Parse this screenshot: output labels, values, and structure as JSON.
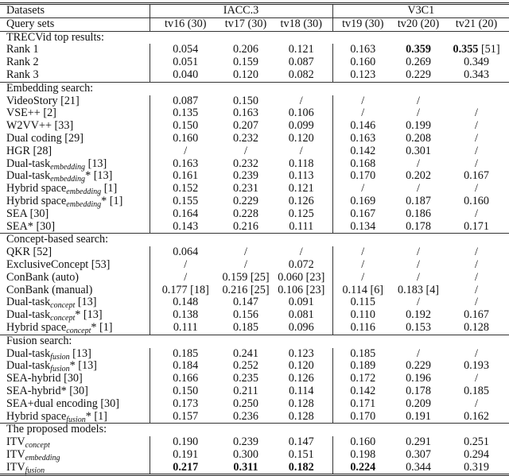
{
  "header": {
    "datasets_label": "Datasets",
    "iacc": "IACC.3",
    "v3c1": "V3C1",
    "querysets_label": "Query sets",
    "query_sets": [
      "tv16 (30)",
      "tv17 (30)",
      "tv18 (30)",
      "tv19 (30)",
      "tv20 (20)",
      "tv21 (20)"
    ]
  },
  "sections": [
    {
      "title": "TRECVid top results:",
      "rows": [
        {
          "name": "Rank 1",
          "cells": [
            "0.054",
            "0.206",
            "0.121",
            "0.163",
            "0.359",
            "0.355 [51]"
          ],
          "bold": [
            4,
            5
          ]
        },
        {
          "name": "Rank 2",
          "cells": [
            "0.051",
            "0.159",
            "0.087",
            "0.160",
            "0.269",
            "0.349"
          ]
        },
        {
          "name": "Rank 3",
          "cells": [
            "0.040",
            "0.120",
            "0.082",
            "0.123",
            "0.229",
            "0.343"
          ]
        }
      ]
    },
    {
      "title": "Embedding search:",
      "rows": [
        {
          "name": "VideoStory [21]",
          "cells": [
            "0.087",
            "0.150",
            "/",
            "/",
            "/",
            ""
          ]
        },
        {
          "name": "VSE++ [2]",
          "cells": [
            "0.135",
            "0.163",
            "0.106",
            "/",
            "/",
            "/"
          ]
        },
        {
          "name": "W2VV++ [33]",
          "cells": [
            "0.150",
            "0.207",
            "0.099",
            "0.146",
            "0.199",
            "/"
          ]
        },
        {
          "name": "Dual coding [29]",
          "cells": [
            "0.160",
            "0.232",
            "0.120",
            "0.163",
            "0.208",
            "/"
          ]
        },
        {
          "name": "HGR [28]",
          "cells": [
            "/",
            "/",
            "/",
            "0.142",
            "0.301",
            "/"
          ]
        },
        {
          "name": "Dual-task",
          "sub": "embedding",
          "suffix": " [13]",
          "cells": [
            "0.163",
            "0.232",
            "0.118",
            "0.168",
            "/",
            "/"
          ]
        },
        {
          "name": "Dual-task",
          "sub": "embedding",
          "suffix": "* [13]",
          "cells": [
            "0.161",
            "0.239",
            "0.113",
            "0.170",
            "0.202",
            "0.167"
          ]
        },
        {
          "name": "Hybrid space",
          "sub": "embedding",
          "suffix": " [1]",
          "cells": [
            "0.152",
            "0.231",
            "0.121",
            "/",
            "/",
            "/"
          ]
        },
        {
          "name": "Hybrid space",
          "sub": "embedding",
          "suffix": "* [1]",
          "cells": [
            "0.155",
            "0.229",
            "0.126",
            "0.169",
            "0.187",
            "0.160"
          ]
        },
        {
          "name": "SEA [30]",
          "cells": [
            "0.164",
            "0.228",
            "0.125",
            "0.167",
            "0.186",
            "/"
          ]
        },
        {
          "name": "SEA* [30]",
          "cells": [
            "0.143",
            "0.216",
            "0.111",
            "0.134",
            "0.178",
            "0.171"
          ]
        }
      ]
    },
    {
      "title": "Concept-based search:",
      "rows": [
        {
          "name": "QKR [52]",
          "cells": [
            "0.064",
            "/",
            "/",
            "/",
            "/",
            "/"
          ]
        },
        {
          "name": "ExclusiveConcept [53]",
          "cells": [
            "/",
            "/",
            "0.072",
            "/",
            "/",
            "/"
          ]
        },
        {
          "name": "ConBank (auto)",
          "cells": [
            "/",
            "0.159 [25]",
            "0.060 [23]",
            "/",
            "/",
            "/"
          ]
        },
        {
          "name": "ConBank (manual)",
          "cells": [
            "0.177 [18]",
            "0.216 [25]",
            "0.106 [23]",
            "0.114 [6]",
            "0.183 [4]",
            "/"
          ]
        },
        {
          "name": "Dual-task",
          "sub": "concept",
          "suffix": " [13]",
          "cells": [
            "0.148",
            "0.147",
            "0.091",
            "0.115",
            "/",
            "/"
          ]
        },
        {
          "name": "Dual-task",
          "sub": "concept",
          "suffix": "* [13]",
          "cells": [
            "0.138",
            "0.156",
            "0.081",
            "0.110",
            "0.192",
            "0.167"
          ]
        },
        {
          "name": "Hybrid space",
          "sub": "concept",
          "suffix": "* [1]",
          "cells": [
            "0.111",
            "0.185",
            "0.096",
            "0.116",
            "0.153",
            "0.128"
          ]
        }
      ]
    },
    {
      "title": "Fusion search:",
      "rows": [
        {
          "name": "Dual-task",
          "sub": "fusion",
          "suffix": " [13]",
          "cells": [
            "0.185",
            "0.241",
            "0.123",
            "0.185",
            "/",
            "/"
          ]
        },
        {
          "name": "Dual-task",
          "sub": "fusion",
          "suffix": "* [13]",
          "cells": [
            "0.184",
            "0.252",
            "0.120",
            "0.189",
            "0.229",
            "0.193"
          ]
        },
        {
          "name": "SEA-hybrid [30]",
          "cells": [
            "0.166",
            "0.235",
            "0.126",
            "0.172",
            "0.196",
            "/"
          ]
        },
        {
          "name": "SEA-hybrid* [30]",
          "cells": [
            "0.150",
            "0.211",
            "0.114",
            "0.142",
            "0.178",
            "0.185"
          ]
        },
        {
          "name": "SEA+dual encoding [30]",
          "cells": [
            "0.173",
            "0.250",
            "0.128",
            "0.171",
            "0.209",
            "/"
          ]
        },
        {
          "name": "Hybrid space",
          "sub": "fusion",
          "suffix": "* [1]",
          "cells": [
            "0.157",
            "0.236",
            "0.128",
            "0.170",
            "0.191",
            "0.162"
          ]
        }
      ]
    },
    {
      "title": "The proposed models:",
      "rows": [
        {
          "name": "ITV",
          "sub": "concept",
          "suffix": "",
          "cells": [
            "0.190",
            "0.239",
            "0.147",
            "0.160",
            "0.291",
            "0.251"
          ]
        },
        {
          "name": "ITV",
          "sub": "embedding",
          "suffix": "",
          "cells": [
            "0.191",
            "0.300",
            "0.151",
            "0.198",
            "0.307",
            "0.294"
          ]
        },
        {
          "name": "ITV",
          "sub": "fusion",
          "suffix": "",
          "cells": [
            "0.217",
            "0.311",
            "0.182",
            "0.224",
            "0.344",
            "0.319"
          ],
          "bold": [
            0,
            1,
            2,
            3
          ]
        }
      ]
    }
  ]
}
